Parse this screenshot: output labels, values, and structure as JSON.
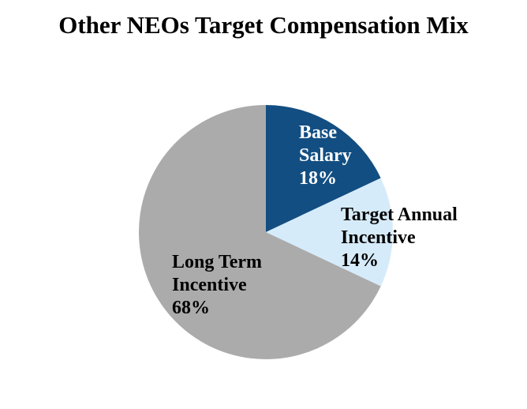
{
  "title": "Other NEOs Target Compensation Mix",
  "chart_data": {
    "type": "pie",
    "title": "Other NEOs Target Compensation Mix",
    "categories": [
      "Base Salary",
      "Target Annual Incentive",
      "Long Term Incentive"
    ],
    "values": [
      18,
      14,
      68
    ],
    "unit": "%",
    "colors": [
      "#124E82",
      "#D6EBFA",
      "#ABABAB"
    ],
    "start_angle": "top (12 o'clock)",
    "direction": "clockwise",
    "legend_position": "none",
    "labels_on_chart": true
  },
  "slice_labels": {
    "base_salary": {
      "text": "Base\nSalary\n18%",
      "color": "#FFFFFF"
    },
    "target_annual_incentive": {
      "text": "Target Annual\nIncentive\n14%",
      "color": "#000000"
    },
    "long_term_incentive": {
      "text": "Long Term\nIncentive\n68%",
      "color": "#000000"
    }
  },
  "colors": {
    "background": "#FFFFFF",
    "title_text": "#000000"
  }
}
